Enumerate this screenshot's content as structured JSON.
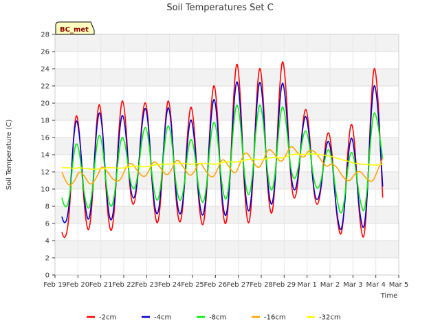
{
  "chart_data": {
    "type": "line",
    "title": "Soil Temperatures Set C",
    "xlabel": "Time",
    "ylabel": "Soil Temperature (C)",
    "badge": "BC_met",
    "ylim": [
      0,
      28
    ],
    "yticks": [
      0,
      2,
      4,
      6,
      8,
      10,
      12,
      14,
      16,
      18,
      20,
      22,
      24,
      26,
      28
    ],
    "xlim": [
      0,
      15
    ],
    "xtick_labels": [
      "Feb 19",
      "Feb 20",
      "Feb 21",
      "Feb 22",
      "Feb 23",
      "Feb 24",
      "Feb 25",
      "Feb 26",
      "Feb 27",
      "Feb 28",
      "Feb 29",
      "Mar 1",
      "Mar 2",
      "Mar 3",
      "Mar 4",
      "Mar 5"
    ],
    "grid": true,
    "legend_position": "bottom",
    "x": [
      0.3,
      0.55,
      0.85,
      1.05,
      1.3,
      1.55,
      1.85,
      2.05,
      2.3,
      2.55,
      2.85,
      3.05,
      3.3,
      3.55,
      3.85,
      4.05,
      4.3,
      4.55,
      4.85,
      5.05,
      5.3,
      5.55,
      5.85,
      6.05,
      6.3,
      6.55,
      6.85,
      7.05,
      7.3,
      7.55,
      7.85,
      8.05,
      8.3,
      8.55,
      8.85,
      9.05,
      9.3,
      9.55,
      9.85,
      10.05,
      10.3,
      10.55,
      10.85,
      11.05,
      11.3,
      11.55,
      11.85,
      12.05,
      12.3,
      12.55,
      12.85,
      13.05,
      13.3,
      13.55,
      13.85,
      14.05,
      14.3
    ],
    "series": [
      {
        "name": "-2cm",
        "color": "#ff0000",
        "values": [
          5.0,
          2.4,
          19.0,
          18.0,
          6.5,
          4.3,
          20.5,
          19.0,
          6.0,
          4.5,
          20.5,
          20.0,
          8.0,
          8.5,
          20.5,
          19.5,
          7.5,
          5.0,
          20.5,
          20.0,
          7.0,
          5.5,
          20.0,
          19.0,
          6.5,
          5.3,
          22.5,
          21.5,
          6.5,
          5.5,
          25.0,
          24.0,
          7.0,
          5.3,
          24.5,
          23.5,
          8.0,
          6.5,
          25.5,
          24.0,
          9.5,
          8.5,
          19.5,
          19.0,
          8.5,
          8.0,
          17.0,
          16.0,
          6.0,
          3.8,
          18.0,
          17.0,
          5.5,
          3.5,
          24.5,
          23.5,
          9.0
        ]
      },
      {
        "name": "-4cm",
        "color": "#0000cc",
        "values": [
          6.8,
          4.2,
          18.3,
          17.5,
          7.5,
          5.7,
          19.2,
          18.5,
          7.0,
          5.9,
          18.8,
          18.3,
          9.0,
          8.9,
          19.7,
          19.0,
          8.0,
          6.4,
          19.7,
          19.2,
          8.0,
          6.4,
          18.5,
          17.5,
          7.5,
          6.5,
          20.8,
          20.0,
          7.5,
          6.4,
          22.9,
          22.0,
          8.5,
          6.6,
          22.8,
          22.0,
          9.0,
          7.6,
          23.0,
          21.5,
          10.5,
          9.4,
          18.8,
          18.0,
          9.0,
          8.6,
          16.0,
          15.0,
          6.5,
          4.4,
          16.3,
          15.5,
          6.5,
          4.7,
          22.5,
          21.5,
          10.3
        ]
      },
      {
        "name": "-8cm",
        "color": "#00ee00",
        "values": [
          9.0,
          6.2,
          15.5,
          15.0,
          8.5,
          7.2,
          16.5,
          16.0,
          8.5,
          7.6,
          16.2,
          15.8,
          10.2,
          9.9,
          17.3,
          17.0,
          9.5,
          8.1,
          17.5,
          17.2,
          9.5,
          8.1,
          16.0,
          15.5,
          9.0,
          8.0,
          18.0,
          17.5,
          9.5,
          8.3,
          20.0,
          19.5,
          10.0,
          8.8,
          20.0,
          19.5,
          10.5,
          9.4,
          20.0,
          19.0,
          11.5,
          11.0,
          17.0,
          16.5,
          10.5,
          9.8,
          14.8,
          14.3,
          8.5,
          6.4,
          14.5,
          14.0,
          8.5,
          6.7,
          19.2,
          18.5,
          13.5
        ]
      },
      {
        "name": "-16cm",
        "color": "#ffa500",
        "values": [
          12.0,
          10.2,
          10.8,
          12.2,
          11.5,
          10.3,
          11.5,
          12.8,
          12.0,
          11.0,
          10.9,
          12.3,
          13.2,
          12.3,
          11.3,
          11.8,
          13.4,
          12.7,
          11.5,
          12.0,
          13.6,
          12.8,
          11.5,
          11.8,
          13.3,
          12.2,
          11.2,
          12.0,
          13.7,
          12.8,
          11.6,
          12.8,
          14.5,
          13.6,
          12.3,
          13.0,
          14.8,
          14.2,
          13.0,
          13.8,
          15.2,
          14.3,
          13.5,
          14.5,
          14.5,
          13.6,
          12.5,
          13.0,
          12.6,
          11.4,
          10.8,
          11.7,
          12.2,
          11.3,
          10.7,
          12.0,
          13.6
        ]
      },
      {
        "name": "-32cm",
        "color": "#ffff00",
        "values": [
          12.5,
          12.5,
          12.4,
          12.5,
          12.4,
          12.3,
          12.3,
          12.4,
          12.5,
          12.5,
          12.4,
          12.5,
          12.6,
          12.7,
          12.6,
          12.6,
          12.8,
          12.9,
          12.9,
          12.9,
          13.0,
          13.0,
          12.9,
          12.9,
          13.0,
          13.0,
          12.9,
          12.9,
          13.1,
          13.2,
          13.1,
          13.2,
          13.4,
          13.5,
          13.4,
          13.4,
          13.6,
          13.7,
          13.6,
          13.7,
          14.0,
          14.1,
          14.0,
          14.1,
          14.1,
          14.0,
          13.9,
          13.8,
          13.6,
          13.4,
          13.2,
          13.0,
          12.9,
          12.9,
          12.8,
          12.8,
          12.9
        ]
      }
    ]
  }
}
